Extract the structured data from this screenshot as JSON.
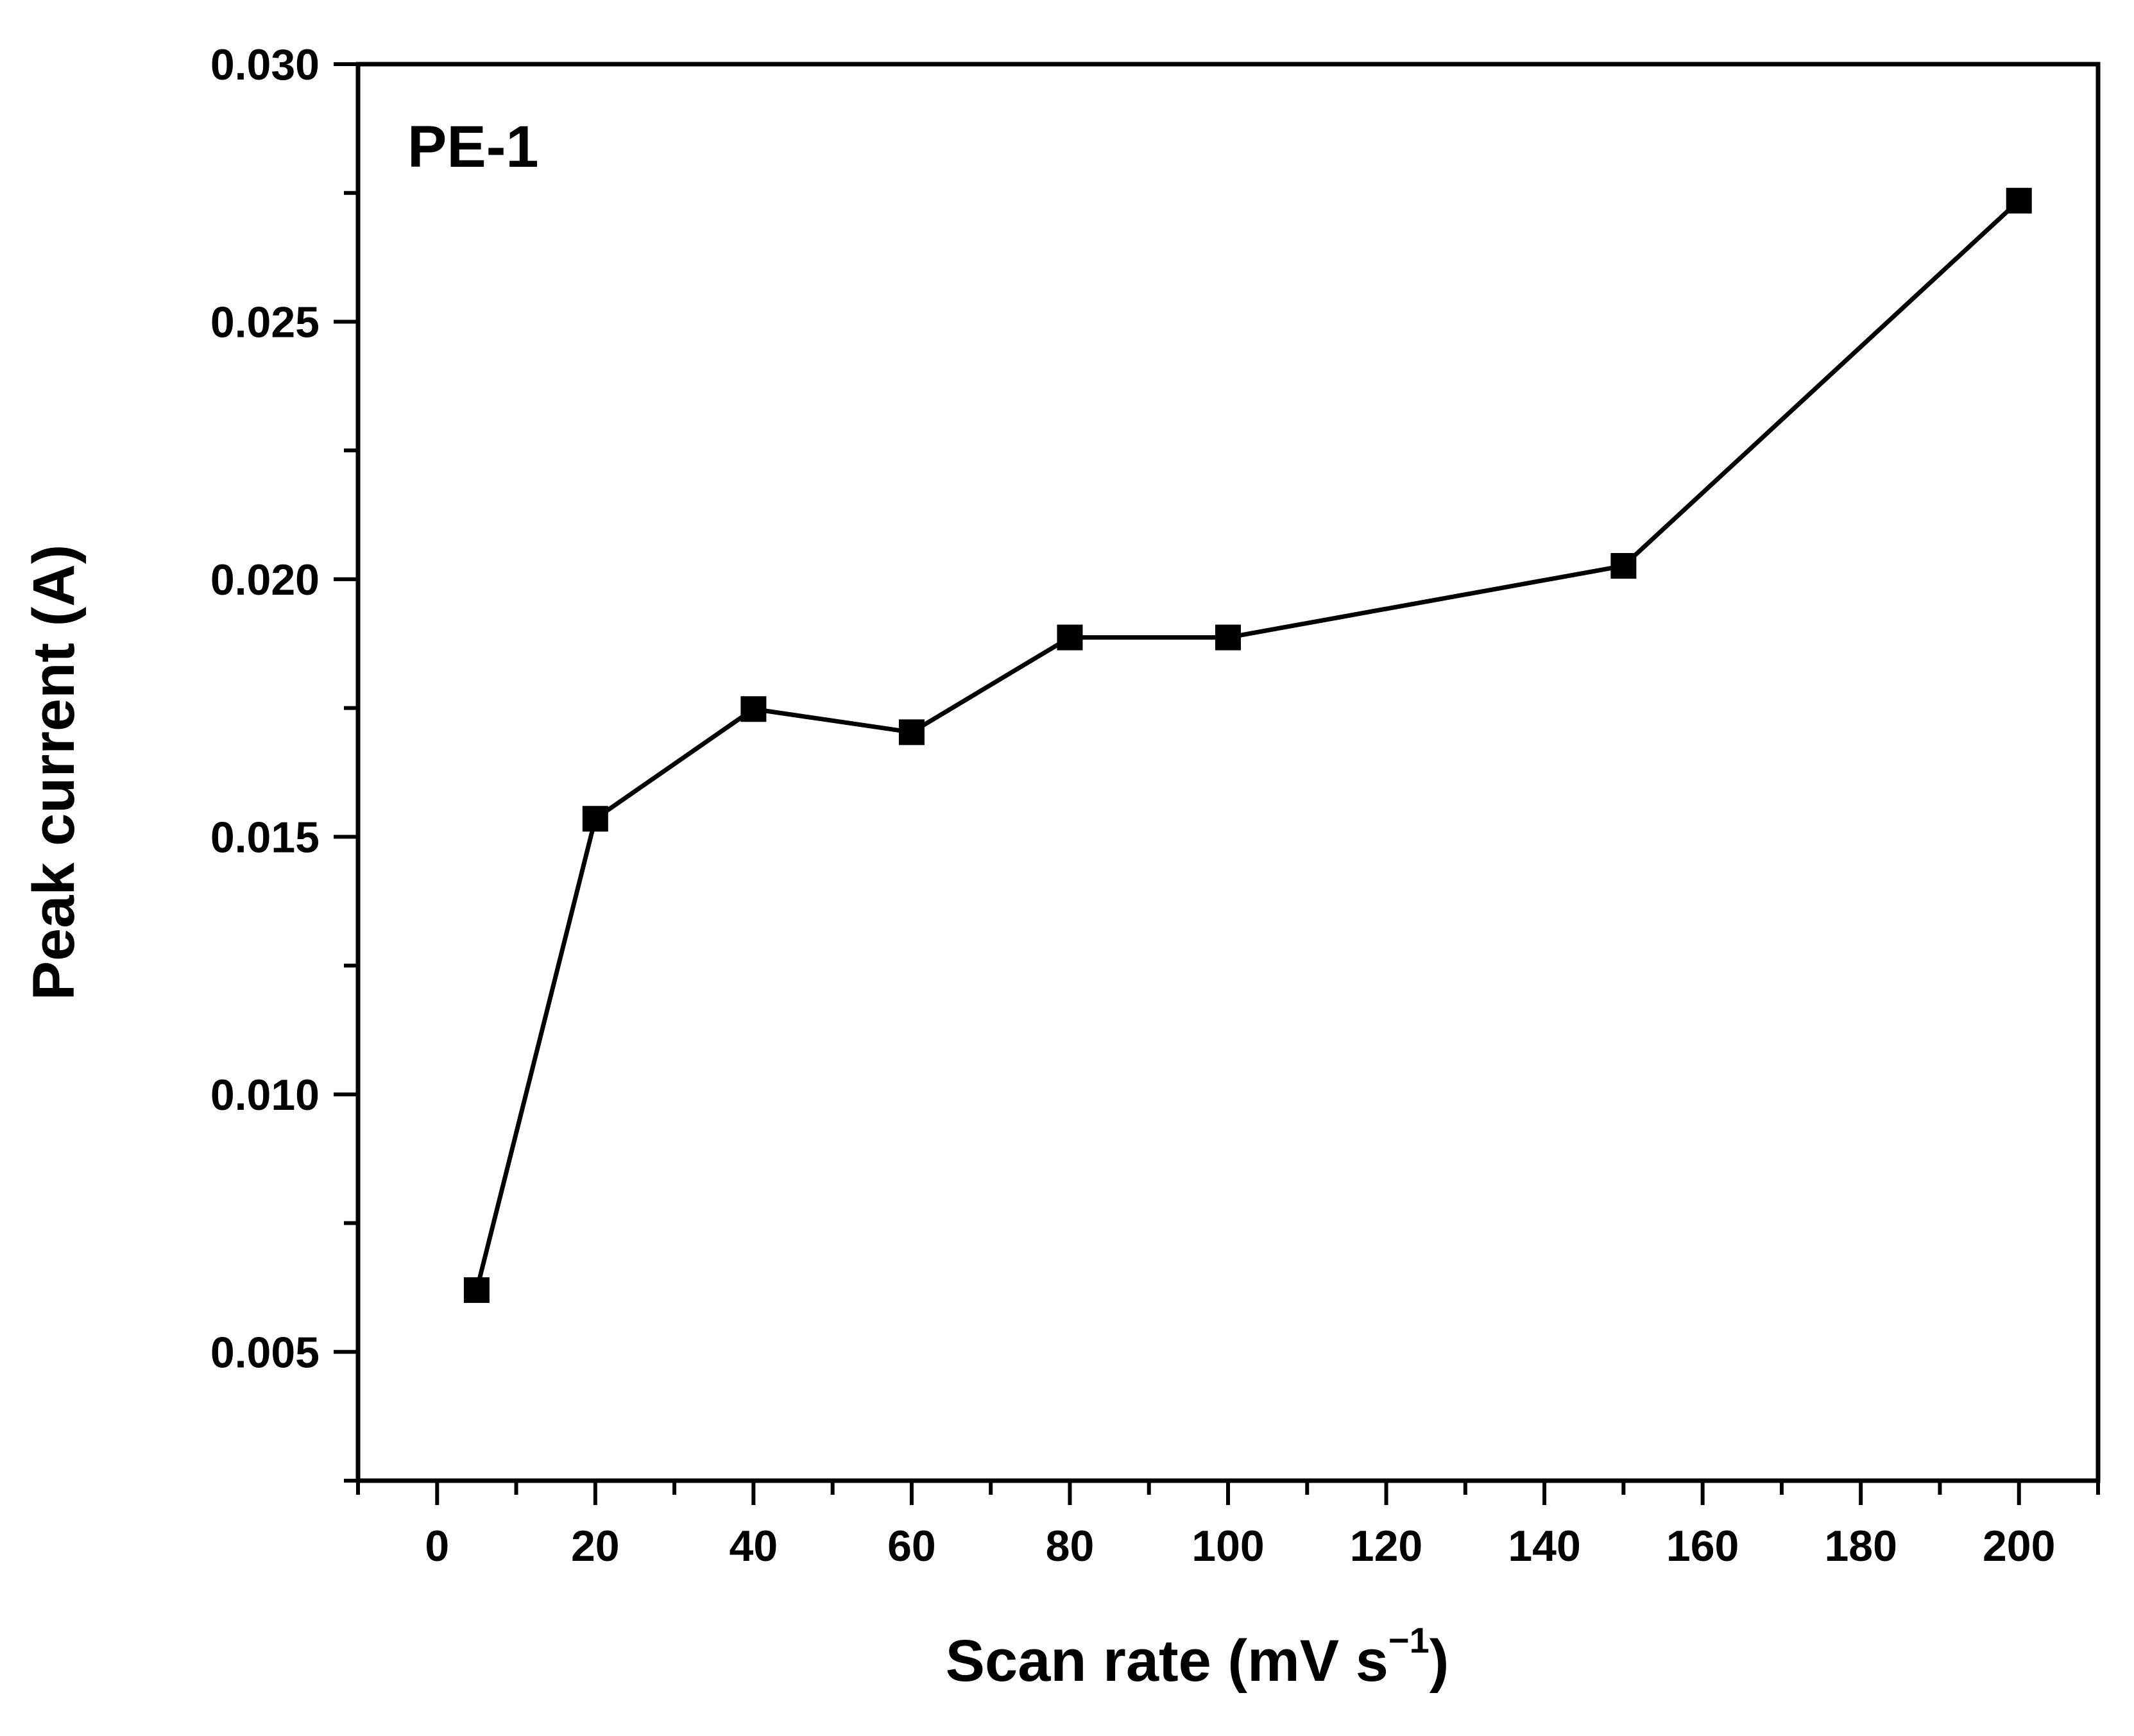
{
  "chart_data": {
    "type": "line",
    "panel_label": "PE-1",
    "xlabel": "Scan rate (mV s",
    "xlabel_superscript": "−1",
    "xlabel_close": ")",
    "ylabel": "Peak current (A)",
    "xlim": [
      -10,
      210
    ],
    "ylim": [
      0.0025,
      0.03
    ],
    "xticks": [
      0,
      20,
      40,
      60,
      80,
      100,
      120,
      140,
      160,
      180,
      200
    ],
    "xtick_labels": [
      "0",
      "20",
      "40",
      "60",
      "80",
      "100",
      "120",
      "140",
      "160",
      "180",
      "200"
    ],
    "yticks": [
      0.005,
      0.01,
      0.015,
      0.02,
      0.025,
      0.03
    ],
    "ytick_labels": [
      "0.005",
      "0.010",
      "0.015",
      "0.020",
      "0.025",
      "0.030"
    ],
    "grid": false,
    "series": [
      {
        "marker": "square",
        "color": "#000000",
        "x": [
          5,
          20,
          40,
          60,
          80,
          100,
          150,
          200
        ],
        "y": [
          0.0062,
          0.01535,
          0.01748,
          0.01703,
          0.01887,
          0.01887,
          0.02026,
          0.02735
        ]
      }
    ]
  }
}
